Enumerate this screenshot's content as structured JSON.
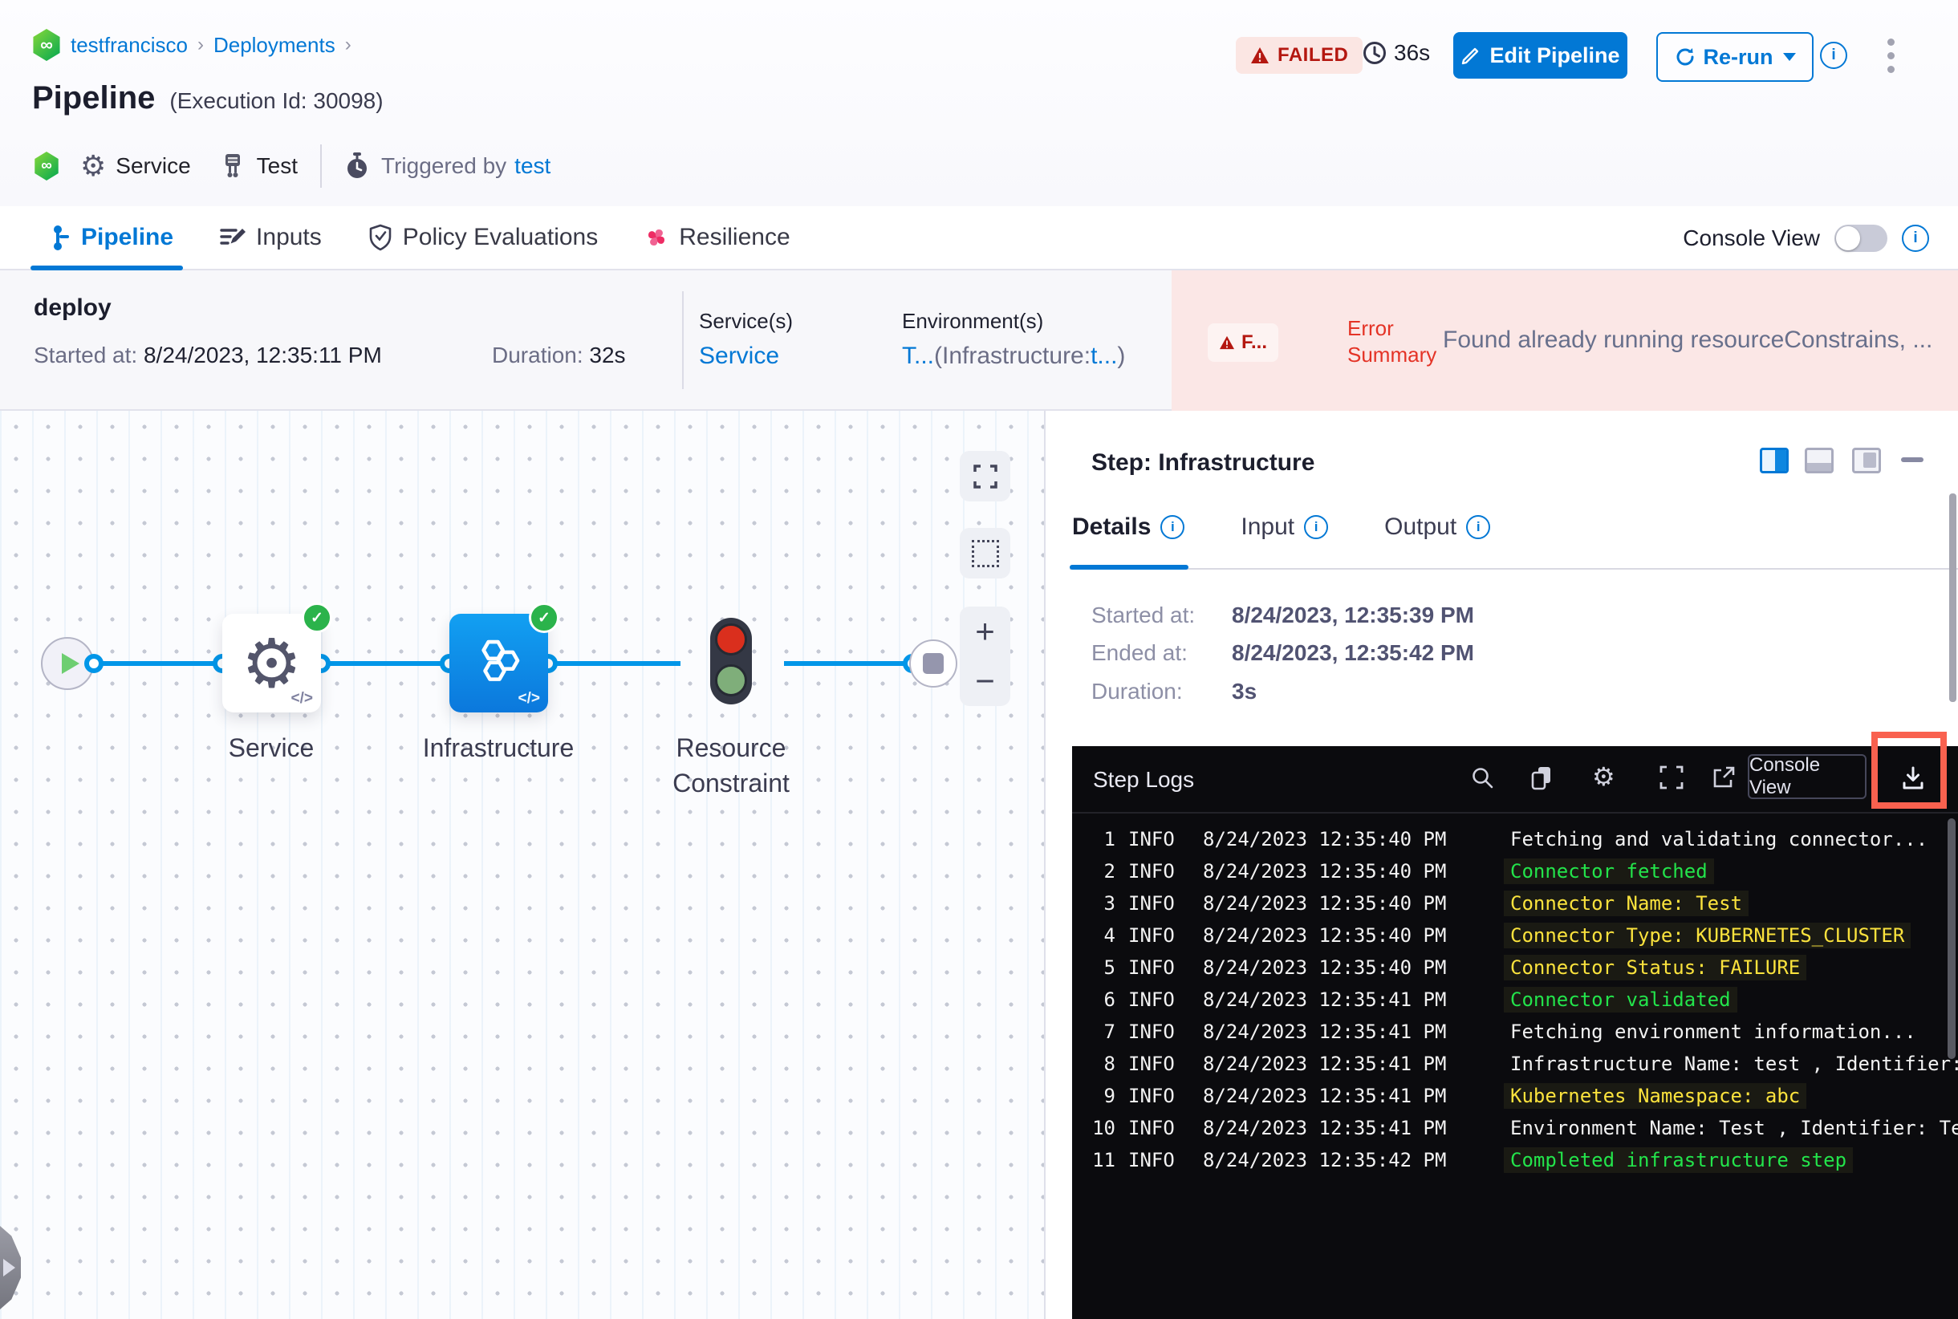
{
  "colors": {
    "primary_blue": "#0278d5",
    "failed_red": "#b41710",
    "error_red": "#e43326",
    "success_green": "#2bb34b",
    "log_green": "#23e44b",
    "log_yellow": "#fbe33d",
    "log_white": "#f2f2f2",
    "console_bg": "#0b0b0e",
    "highlight_red": "#f9614f"
  },
  "breadcrumb": {
    "project": "testfrancisco",
    "section": "Deployments",
    "separator": "›"
  },
  "header": {
    "title": "Pipeline",
    "execution_id": "(Execution Id: 30098)",
    "status": "FAILED",
    "elapsed": "36s",
    "edit_pipeline": "Edit Pipeline",
    "rerun": "Re-run",
    "service_label": "Service",
    "test_label": "Test",
    "triggered_by": "Triggered by",
    "triggered_by_user": "test",
    "logo_glyph": "∞"
  },
  "tabs": {
    "pipeline": "Pipeline",
    "inputs": "Inputs",
    "policy": "Policy Evaluations",
    "resilience": "Resilience",
    "console_view": "Console View"
  },
  "summary": {
    "stage": "deploy",
    "started_label": "Started at:",
    "started": "8/24/2023, 12:35:11 PM",
    "duration_label": "Duration:",
    "duration": "32s",
    "services_label": "Service(s)",
    "services": "Service",
    "environments_label": "Environment(s)",
    "env_part1": "T...",
    "env_part2": "(Infrastructure:",
    "env_part3": "t...",
    "env_part4": ")",
    "failed_short": "F...",
    "error_label": "Error Summary",
    "error_text": "Found already running resourceConstrains, ..."
  },
  "graph": {
    "node1": "Service",
    "node2": "Infrastructure",
    "node3_line1": "Resource",
    "node3_line2": "Constraint",
    "code_glyph": "</>",
    "gear_glyph": "⚙",
    "check_glyph": "✓",
    "zoom_in": "+",
    "zoom_out": "−"
  },
  "panel": {
    "title": "Step: Infrastructure",
    "tab_details": "Details",
    "tab_input": "Input",
    "tab_output": "Output",
    "info_glyph": "i",
    "details": [
      {
        "label": "Started at:",
        "value": "8/24/2023, 12:35:39 PM"
      },
      {
        "label": "Ended at:",
        "value": "8/24/2023, 12:35:42 PM"
      },
      {
        "label": "Duration:",
        "value": "3s"
      }
    ]
  },
  "logs": {
    "title": "Step Logs",
    "console_view_button": "Console View",
    "entries": [
      {
        "n": "1",
        "level": "INFO",
        "time": "8/24/2023 12:35:40 PM",
        "msg": "Fetching and validating connector...",
        "color": "white"
      },
      {
        "n": "2",
        "level": "INFO",
        "time": "8/24/2023 12:35:40 PM",
        "msg": "Connector fetched",
        "color": "green"
      },
      {
        "n": "3",
        "level": "INFO",
        "time": "8/24/2023 12:35:40 PM",
        "msg": "Connector Name: Test",
        "color": "yellow"
      },
      {
        "n": "4",
        "level": "INFO",
        "time": "8/24/2023 12:35:40 PM",
        "msg": "Connector Type: KUBERNETES_CLUSTER",
        "color": "yellow"
      },
      {
        "n": "5",
        "level": "INFO",
        "time": "8/24/2023 12:35:40 PM",
        "msg": "Connector Status: FAILURE",
        "color": "yellow"
      },
      {
        "n": "6",
        "level": "INFO",
        "time": "8/24/2023 12:35:41 PM",
        "msg": "Connector validated",
        "color": "green"
      },
      {
        "n": "7",
        "level": "INFO",
        "time": "8/24/2023 12:35:41 PM",
        "msg": "Fetching environment information...",
        "color": "white"
      },
      {
        "n": "8",
        "level": "INFO",
        "time": "8/24/2023 12:35:41 PM",
        "msg": "Infrastructure Name: test , Identifier:",
        "color": "white"
      },
      {
        "n": "9",
        "level": "INFO",
        "time": "8/24/2023 12:35:41 PM",
        "msg": "Kubernetes Namespace: abc",
        "color": "yellow"
      },
      {
        "n": "10",
        "level": "INFO",
        "time": "8/24/2023 12:35:41 PM",
        "msg": "Environment Name: Test , Identifier: Te",
        "color": "white"
      },
      {
        "n": "11",
        "level": "INFO",
        "time": "8/24/2023 12:35:42 PM",
        "msg": "Completed infrastructure step",
        "color": "green"
      }
    ]
  }
}
